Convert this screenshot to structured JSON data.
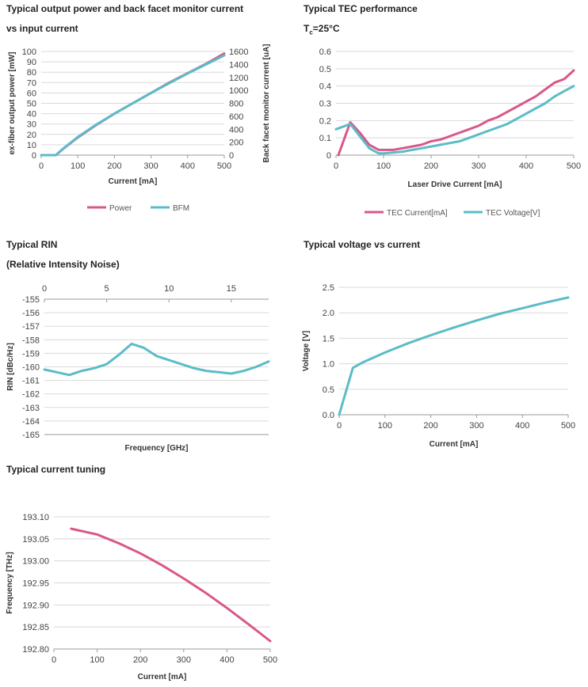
{
  "colors": {
    "power": "#d9578a",
    "bfm": "#5bbcc7",
    "grid": "#d9d9d9",
    "axis": "#9a9a9a"
  },
  "chart_data": [
    {
      "id": "power",
      "type": "line",
      "title": "Typical output power and back facet monitor current",
      "subtitle": "vs input current",
      "xlabel": "Current [mA]",
      "ylabel": "ex-fiber output power [mW]",
      "y2label": "Back facet monitor current [uA]",
      "xlim": [
        0,
        500
      ],
      "ylim": [
        0,
        100
      ],
      "y2lim": [
        0,
        1600
      ],
      "xticks": [
        0,
        100,
        200,
        300,
        400,
        500
      ],
      "yticks": [
        0,
        10,
        20,
        30,
        40,
        50,
        60,
        70,
        80,
        90,
        100
      ],
      "y2ticks": [
        0,
        200,
        400,
        600,
        800,
        1000,
        1200,
        1400,
        1600
      ],
      "grid": "horizontal",
      "legend": "bottom",
      "series": [
        {
          "name": "Power",
          "axis": "left",
          "color": "#d9578a",
          "x": [
            0,
            30,
            40,
            60,
            100,
            150,
            200,
            250,
            300,
            350,
            400,
            450,
            500
          ],
          "y": [
            0,
            0,
            0,
            6,
            17,
            29,
            40,
            50,
            60,
            70,
            79,
            88,
            98
          ]
        },
        {
          "name": "BFM",
          "axis": "right",
          "color": "#5bbcc7",
          "x": [
            0,
            30,
            40,
            60,
            100,
            150,
            200,
            250,
            300,
            350,
            400,
            450,
            500
          ],
          "y": [
            0,
            0,
            0,
            100,
            280,
            470,
            640,
            800,
            960,
            1110,
            1260,
            1400,
            1540
          ]
        }
      ]
    },
    {
      "id": "tec",
      "type": "line",
      "title": "Typical TEC performance",
      "subtitle": "Tc=25°C",
      "xlabel": "Laser Drive Current [mA]",
      "ylabel": "",
      "xlim": [
        0,
        500
      ],
      "ylim": [
        0,
        0.6
      ],
      "xticks": [
        0,
        100,
        200,
        300,
        400,
        500
      ],
      "yticks": [
        0,
        0.1,
        0.2,
        0.3,
        0.4,
        0.5,
        0.6
      ],
      "ytick_labels": [
        "0",
        "0.1",
        "0.2",
        "0.3",
        "0.4",
        "0.5",
        "0.6"
      ],
      "grid": "horizontal",
      "legend": "bottom",
      "series": [
        {
          "name": "TEC Current[mA]",
          "color": "#d9578a",
          "x": [
            5,
            30,
            50,
            70,
            90,
            100,
            120,
            140,
            160,
            180,
            200,
            220,
            240,
            260,
            280,
            300,
            320,
            340,
            360,
            380,
            400,
            420,
            440,
            460,
            480,
            500
          ],
          "y": [
            0.0,
            0.19,
            0.13,
            0.06,
            0.03,
            0.03,
            0.03,
            0.04,
            0.05,
            0.06,
            0.08,
            0.09,
            0.11,
            0.13,
            0.15,
            0.17,
            0.2,
            0.22,
            0.25,
            0.28,
            0.31,
            0.34,
            0.38,
            0.42,
            0.44,
            0.49
          ]
        },
        {
          "name": "TEC Voltage[V]",
          "color": "#5bbcc7",
          "x": [
            0,
            30,
            50,
            70,
            90,
            100,
            120,
            140,
            160,
            180,
            200,
            220,
            240,
            260,
            280,
            300,
            320,
            340,
            360,
            380,
            400,
            420,
            440,
            460,
            480,
            500
          ],
          "y": [
            0.15,
            0.18,
            0.11,
            0.04,
            0.01,
            0.01,
            0.015,
            0.02,
            0.03,
            0.04,
            0.05,
            0.06,
            0.07,
            0.08,
            0.1,
            0.12,
            0.14,
            0.16,
            0.18,
            0.21,
            0.24,
            0.27,
            0.3,
            0.34,
            0.37,
            0.4
          ]
        }
      ]
    },
    {
      "id": "rin",
      "type": "line",
      "title": "Typical RIN",
      "subtitle": "(Relative Intensity Noise)",
      "xlabel": "Frequency [GHz]",
      "ylabel": "RIN [dBc/Hz]",
      "xlim": [
        0,
        18
      ],
      "ylim": [
        -165,
        -155
      ],
      "xticks": [
        0,
        5,
        10,
        15
      ],
      "xaxis_position": "top",
      "yticks": [
        -165,
        -164,
        -163,
        -162,
        -161,
        -160,
        -159,
        -158,
        -157,
        -156,
        -155
      ],
      "grid": "horizontal",
      "series": [
        {
          "name": "RIN",
          "color": "#5bbcc7",
          "x": [
            0,
            1,
            2,
            3,
            4,
            5,
            6,
            7,
            8,
            9,
            10,
            11,
            12,
            13,
            14,
            15,
            16,
            17,
            18
          ],
          "y": [
            -160.2,
            -160.4,
            -160.6,
            -160.3,
            -160.1,
            -159.8,
            -159.1,
            -158.3,
            -158.6,
            -159.2,
            -159.5,
            -159.8,
            -160.1,
            -160.3,
            -160.4,
            -160.5,
            -160.3,
            -160.0,
            -159.6
          ]
        }
      ]
    },
    {
      "id": "voltage",
      "type": "line",
      "title": "Typical voltage vs current",
      "xlabel": "Current [mA]",
      "ylabel": "Voltage [V]",
      "xlim": [
        0,
        500
      ],
      "ylim": [
        0,
        2.5
      ],
      "xticks": [
        0,
        100,
        200,
        300,
        400,
        500
      ],
      "yticks": [
        0,
        0.5,
        1.0,
        1.5,
        2.0,
        2.5
      ],
      "ytick_labels": [
        "0.0",
        "0.5",
        "1.0",
        "1.5",
        "2.0",
        "2.5"
      ],
      "grid": "horizontal",
      "series": [
        {
          "name": "Voltage",
          "color": "#5bbcc7",
          "x": [
            0,
            30,
            50,
            100,
            150,
            200,
            250,
            300,
            350,
            400,
            450,
            500
          ],
          "y": [
            0,
            0.92,
            1.02,
            1.22,
            1.4,
            1.56,
            1.71,
            1.85,
            1.98,
            2.09,
            2.2,
            2.3
          ]
        }
      ]
    },
    {
      "id": "tuning",
      "type": "line",
      "title": "Typical current tuning",
      "xlabel": "Current [mA]",
      "ylabel": "Frequency [THz]",
      "xlim": [
        0,
        500
      ],
      "ylim": [
        192.8,
        193.1
      ],
      "xticks": [
        0,
        100,
        200,
        300,
        400,
        500
      ],
      "yticks": [
        192.8,
        192.85,
        192.9,
        192.95,
        193.0,
        193.05,
        193.1
      ],
      "ytick_labels": [
        "192.80",
        "192.85",
        "192.90",
        "192.95",
        "193.00",
        "193.05",
        "193.10"
      ],
      "grid": "horizontal",
      "series": [
        {
          "name": "Frequency",
          "color": "#d9578a",
          "x": [
            40,
            100,
            150,
            200,
            250,
            300,
            350,
            400,
            450,
            500
          ],
          "y": [
            193.073,
            193.06,
            193.04,
            193.017,
            192.99,
            192.96,
            192.928,
            192.893,
            192.856,
            192.818
          ]
        }
      ]
    }
  ]
}
